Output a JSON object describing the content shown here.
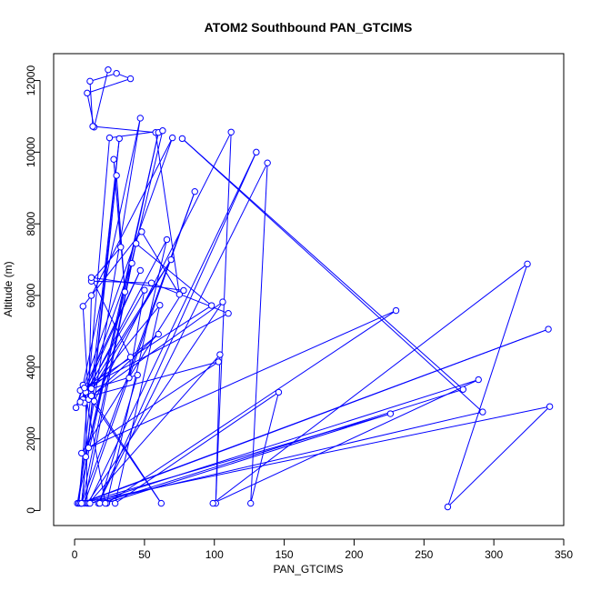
{
  "chart_data": {
    "type": "line",
    "title": "ATOM2 Southbound PAN_GTCIMS",
    "xlabel": "PAN_GTCIMS",
    "ylabel": "Altitude (m)",
    "xlim": [
      -15,
      350
    ],
    "ylim": [
      -420,
      12750
    ],
    "xticks": [
      0,
      50,
      100,
      150,
      200,
      250,
      300,
      350
    ],
    "yticks": [
      0,
      2000,
      4000,
      6000,
      8000,
      10000,
      12000
    ],
    "grid": false,
    "legend": "none",
    "series": [
      {
        "points": [
          [
            24,
            12300
          ],
          [
            14,
            10700
          ],
          [
            9,
            11650
          ],
          [
            40,
            12050
          ],
          [
            30,
            12200
          ],
          [
            11,
            11980
          ],
          [
            13,
            10720
          ],
          [
            58,
            10550
          ],
          [
            75,
            6030
          ],
          [
            48,
            7780
          ],
          [
            6,
            5700
          ],
          [
            10,
            3100
          ],
          [
            12,
            6000
          ],
          [
            70,
            10400
          ],
          [
            1,
            2870
          ],
          [
            6,
            3500
          ],
          [
            47,
            10950
          ],
          [
            2,
            200
          ],
          [
            60,
            10550
          ],
          [
            8,
            1500
          ],
          [
            63,
            10600
          ],
          [
            25,
            10400
          ],
          [
            3,
            200
          ],
          [
            32,
            10380
          ],
          [
            5,
            200
          ],
          [
            30,
            9350
          ],
          [
            36,
            6100
          ],
          [
            28,
            9800
          ],
          [
            33,
            7350
          ],
          [
            12,
            6400
          ],
          [
            55,
            6350
          ],
          [
            110,
            5500
          ],
          [
            4,
            3350
          ],
          [
            98,
            5720
          ],
          [
            44,
            7450
          ],
          [
            5,
            200
          ],
          [
            86,
            8900
          ],
          [
            7,
            200
          ],
          [
            41,
            6900
          ],
          [
            8,
            3300
          ],
          [
            9,
            200
          ],
          [
            106,
            5820
          ],
          [
            12,
            3200
          ],
          [
            103,
            4150
          ],
          [
            10,
            1750
          ],
          [
            230,
            5580
          ],
          [
            23,
            200
          ],
          [
            66,
            7560
          ],
          [
            6,
            3100
          ],
          [
            69,
            7000
          ],
          [
            7,
            3000
          ],
          [
            60,
            4920
          ],
          [
            8,
            3300
          ],
          [
            62,
            200
          ],
          [
            14,
            3050
          ],
          [
            112,
            10560
          ],
          [
            101,
            200
          ],
          [
            104,
            4350
          ],
          [
            10,
            200
          ],
          [
            130,
            10000
          ],
          [
            17,
            200
          ],
          [
            138,
            9700
          ],
          [
            126,
            200
          ],
          [
            146,
            3300
          ],
          [
            29,
            200
          ],
          [
            61,
            5730
          ],
          [
            12,
            3400
          ],
          [
            45,
            3780
          ],
          [
            18,
            200
          ],
          [
            278,
            3380
          ],
          [
            77,
            10380
          ],
          [
            292,
            2750
          ],
          [
            11,
            200
          ],
          [
            289,
            3650
          ],
          [
            99,
            200
          ],
          [
            324,
            6880
          ],
          [
            267,
            100
          ],
          [
            340,
            2900
          ],
          [
            4,
            200
          ],
          [
            339,
            5060
          ],
          [
            5,
            200
          ],
          [
            226,
            2700
          ],
          [
            22,
            200
          ],
          [
            7,
            3420
          ],
          [
            47,
            6700
          ],
          [
            4,
            3030
          ],
          [
            50,
            6150
          ],
          [
            39,
            3700
          ],
          [
            40,
            4280
          ],
          [
            12,
            6500
          ],
          [
            78,
            6140
          ],
          [
            5,
            1600
          ]
        ]
      }
    ]
  }
}
